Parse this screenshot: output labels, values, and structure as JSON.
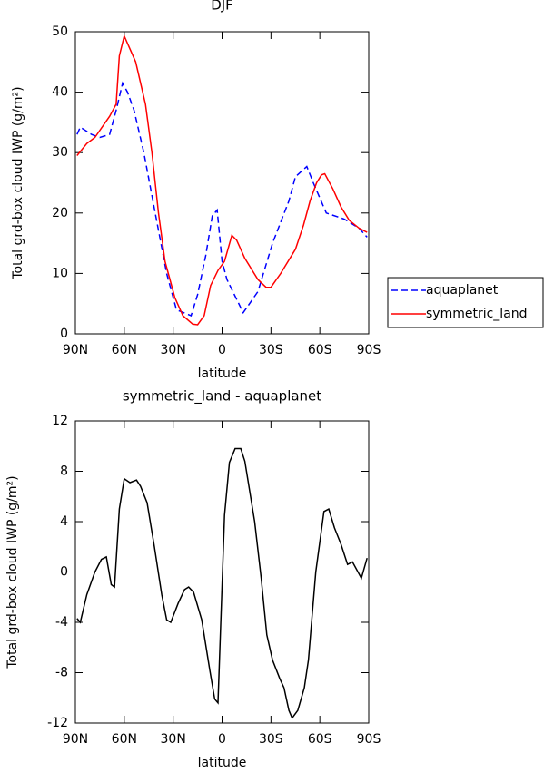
{
  "chart_data": [
    {
      "type": "line",
      "title": "DJF",
      "xlabel": "latitude",
      "ylabel": "Total grd-box cloud IWP (g/m²)",
      "xlim": [
        90,
        -90
      ],
      "ylim": [
        0,
        50
      ],
      "xticks": [
        {
          "value": 90,
          "label": "90N"
        },
        {
          "value": 60,
          "label": "60N"
        },
        {
          "value": 30,
          "label": "30N"
        },
        0,
        {
          "value": -30,
          "label": "30S"
        },
        {
          "value": -60,
          "label": "60S"
        },
        {
          "value": -90,
          "label": "90S"
        }
      ],
      "yticks": [
        0,
        10,
        20,
        30,
        40,
        50
      ],
      "legend": "right",
      "series": [
        {
          "name": "aquaplanet",
          "color": "#0000ff",
          "dash": "dashed",
          "x": [
            89,
            87,
            80,
            75,
            69,
            65,
            61,
            58,
            54,
            48,
            41,
            34,
            28,
            19,
            15,
            10,
            6,
            3,
            0,
            -3,
            -13,
            -22,
            -31,
            -41,
            -45,
            -52,
            -56,
            -64,
            -75,
            -84,
            -89
          ],
          "values": [
            33,
            34.2,
            33,
            32.5,
            33,
            37,
            41.5,
            40,
            37,
            30,
            20,
            10,
            4,
            3,
            6.5,
            13,
            19.5,
            20.5,
            12,
            9,
            3.5,
            7,
            15,
            22,
            26,
            27.7,
            25,
            20,
            19,
            17.5,
            16
          ]
        },
        {
          "name": "symmetric_land",
          "color": "#ff0000",
          "dash": "solid",
          "x": [
            89,
            83,
            78,
            69,
            65,
            63,
            60,
            53,
            47,
            43,
            39,
            35,
            29,
            24,
            18,
            15,
            11,
            7,
            2.5,
            -1.5,
            -6,
            -9,
            -14,
            -22,
            -27,
            -30,
            -36,
            -45,
            -50,
            -54,
            -58,
            -61,
            -63,
            -68,
            -73,
            -78,
            -84,
            -89
          ],
          "values": [
            29.5,
            31.5,
            32.5,
            36,
            38,
            46,
            49.3,
            45,
            38,
            30,
            20,
            12,
            6,
            3,
            1.6,
            1.5,
            3,
            8,
            10.5,
            12,
            16.3,
            15.5,
            12.5,
            9,
            7.7,
            7.7,
            10,
            14,
            18,
            22,
            25,
            26.3,
            26.5,
            24,
            21,
            18.8,
            17.5,
            16.8
          ]
        }
      ]
    },
    {
      "type": "line",
      "title": "symmetric_land - aquaplanet",
      "xlabel": "latitude",
      "ylabel": "Total grd-box cloud IWP (g/m²)",
      "xlim": [
        90,
        -90
      ],
      "ylim": [
        -12,
        12
      ],
      "xticks": [
        {
          "value": 90,
          "label": "90N"
        },
        {
          "value": 60,
          "label": "60N"
        },
        {
          "value": 30,
          "label": "30N"
        },
        0,
        {
          "value": -30,
          "label": "30S"
        },
        {
          "value": -60,
          "label": "60S"
        },
        {
          "value": -90,
          "label": "90S"
        }
      ],
      "yticks": [
        -12,
        -8,
        -4,
        0,
        4,
        8,
        12
      ],
      "series": [
        {
          "color": "#000000",
          "dash": "solid",
          "x": [
            89,
            87,
            83,
            78,
            74,
            71,
            68,
            66,
            63,
            60,
            56.5,
            52.5,
            50,
            46,
            41.5,
            37,
            34,
            31.5,
            27,
            23,
            20.5,
            17.5,
            12.5,
            7.5,
            4.5,
            2.5,
            -1.5,
            -4.5,
            -8,
            -11.5,
            -14,
            -20,
            -24,
            -27.5,
            -31,
            -35.5,
            -38,
            -41,
            -43,
            -46.5,
            -50.5,
            -53,
            -57.5,
            -62.5,
            -65.5,
            -69,
            -73,
            -77,
            -80,
            -85.5,
            -89
          ],
          "values": [
            -3.7,
            -4,
            -1.8,
            0,
            1,
            1.2,
            -1,
            -1.2,
            5,
            7.4,
            7.1,
            7.3,
            6.8,
            5.5,
            2,
            -1.8,
            -3.8,
            -4,
            -2.5,
            -1.4,
            -1.2,
            -1.6,
            -3.8,
            -7.8,
            -10.1,
            -10.4,
            4.5,
            8.7,
            9.8,
            9.8,
            8.8,
            4,
            -0.5,
            -5,
            -7,
            -8.5,
            -9.2,
            -11,
            -11.6,
            -11,
            -9.2,
            -7,
            0,
            4.8,
            5,
            3.5,
            2.2,
            0.6,
            0.8,
            -0.5,
            1.1
          ]
        }
      ]
    }
  ]
}
